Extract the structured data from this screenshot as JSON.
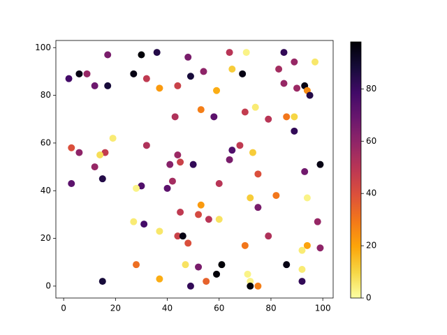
{
  "chart_data": {
    "type": "scatter",
    "colormap": "inferno_r",
    "x": [
      2,
      6,
      9,
      17,
      12,
      17,
      27,
      30,
      36,
      32,
      37,
      44,
      48,
      49,
      54,
      64,
      65,
      70.5,
      69,
      59,
      53,
      43,
      58,
      70,
      74,
      79,
      83,
      85,
      89,
      85,
      90,
      93,
      94,
      95,
      97,
      86,
      89,
      89,
      3,
      6,
      16,
      14,
      19,
      32,
      12,
      3,
      15,
      41,
      44,
      45,
      50,
      42,
      40,
      30,
      28,
      60,
      65,
      64,
      68,
      73,
      75,
      72,
      75,
      82,
      93,
      99,
      94,
      45,
      53,
      52,
      56,
      60,
      27,
      31,
      37,
      44,
      46,
      48,
      79,
      70,
      98,
      99,
      94,
      92,
      92,
      92,
      86,
      28,
      47,
      52,
      61,
      59,
      71,
      72,
      72,
      75,
      55,
      37,
      15,
      49
    ],
    "values": [
      87,
      89,
      89,
      97,
      84,
      84,
      89,
      97,
      98,
      87,
      83,
      84,
      96,
      88,
      90,
      98,
      91,
      98,
      89,
      82,
      74,
      71,
      71,
      73,
      75,
      70,
      91,
      98,
      94,
      85,
      83,
      84,
      82,
      80,
      94,
      71,
      71,
      65,
      58,
      56,
      56,
      55,
      62,
      59,
      50,
      43,
      45,
      51,
      55,
      52,
      51,
      44,
      41,
      42,
      41,
      43,
      57,
      53,
      59,
      56,
      47,
      37,
      33,
      38,
      48,
      51,
      37,
      31,
      34,
      30,
      28,
      28,
      27,
      26,
      23,
      21,
      21,
      18,
      21,
      17,
      27,
      16,
      17,
      15,
      7,
      2,
      9,
      9,
      9,
      8,
      9,
      5,
      5,
      2,
      0,
      0,
      2,
      3,
      2,
      0
    ],
    "color_values": [
      78,
      95,
      58,
      65,
      68,
      88,
      95,
      97,
      85,
      48,
      22,
      45,
      65,
      88,
      60,
      50,
      12,
      3,
      95,
      18,
      28,
      52,
      72,
      47,
      5,
      50,
      55,
      82,
      58,
      58,
      57,
      95,
      25,
      85,
      6,
      30,
      10,
      82,
      40,
      60,
      47,
      8,
      5,
      52,
      58,
      72,
      85,
      62,
      57,
      45,
      82,
      55,
      72,
      75,
      3,
      50,
      75,
      65,
      48,
      12,
      40,
      12,
      65,
      30,
      67,
      95,
      3,
      48,
      22,
      42,
      50,
      7,
      5,
      78,
      6,
      45,
      95,
      40,
      52,
      30,
      58,
      60,
      20,
      5,
      5,
      82,
      95,
      32,
      7,
      65,
      97,
      97,
      3,
      3,
      97,
      28,
      35,
      18,
      88,
      82
    ],
    "xlim": [
      -3,
      104
    ],
    "ylim": [
      -5,
      103
    ],
    "xticks": [
      0,
      20,
      40,
      60,
      80,
      100
    ],
    "yticks": [
      0,
      20,
      40,
      60,
      80,
      100
    ],
    "clim": [
      0,
      98
    ],
    "cticks": [
      0,
      20,
      40,
      60,
      80
    ]
  }
}
